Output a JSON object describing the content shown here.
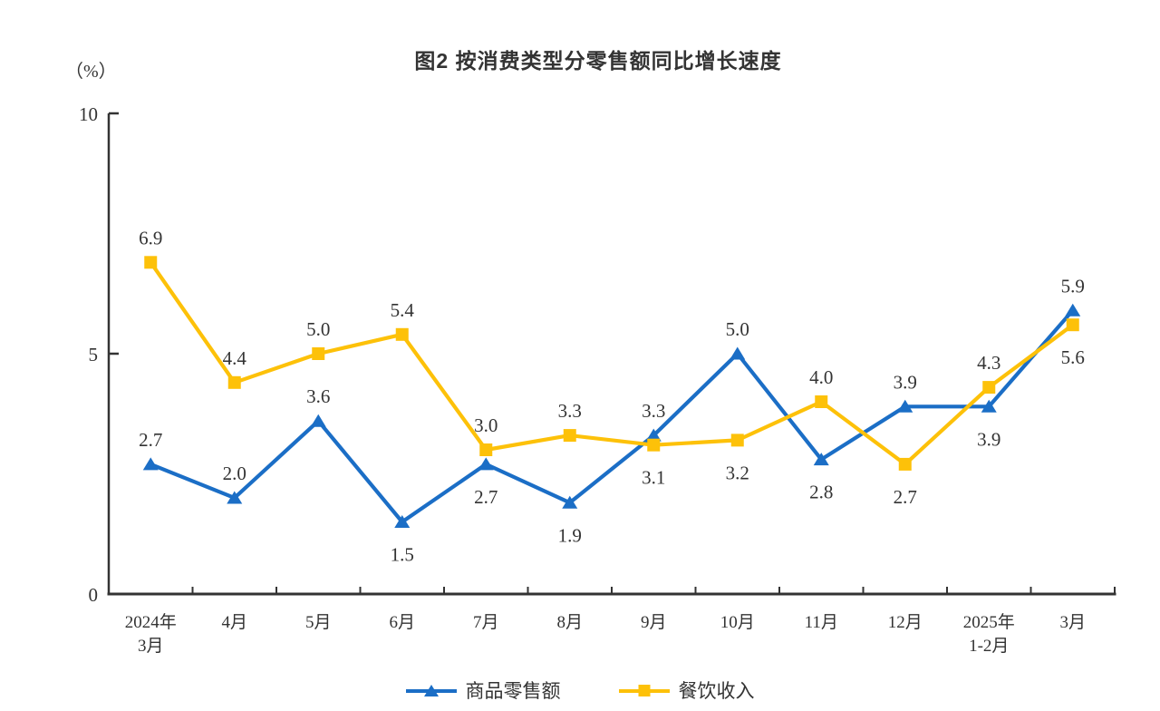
{
  "title": "图2 按消费类型分零售额同比增长速度",
  "unit_label": "（%）",
  "chart_data": {
    "type": "line",
    "categories": [
      "2024年\n3月",
      "4月",
      "5月",
      "6月",
      "7月",
      "8月",
      "9月",
      "10月",
      "11月",
      "12月",
      "2025年\n1-2月",
      "3月"
    ],
    "series": [
      {
        "name": "商品零售额",
        "color": "#1B6EC6",
        "marker": "triangle",
        "values": [
          2.7,
          2.0,
          3.6,
          1.5,
          2.7,
          1.9,
          3.3,
          5.0,
          2.8,
          3.9,
          3.9,
          5.9
        ],
        "label_positions": [
          "above",
          "above",
          "above",
          "below",
          "below",
          "below",
          "above",
          "above",
          "below",
          "above",
          "below",
          "above"
        ]
      },
      {
        "name": "餐饮收入",
        "color": "#FDC109",
        "marker": "square",
        "values": [
          6.9,
          4.4,
          5.0,
          5.4,
          3.0,
          3.3,
          3.1,
          3.2,
          4.0,
          2.7,
          4.3,
          5.6
        ],
        "label_positions": [
          "above",
          "above",
          "above",
          "above",
          "above",
          "above",
          "below",
          "below",
          "above",
          "below",
          "above",
          "below"
        ]
      }
    ],
    "ylim": [
      0,
      10
    ],
    "yticks": [
      0,
      5,
      10
    ],
    "grid": false,
    "legend_position": "bottom",
    "axis_color": "#333333",
    "label_color": "#333333"
  }
}
